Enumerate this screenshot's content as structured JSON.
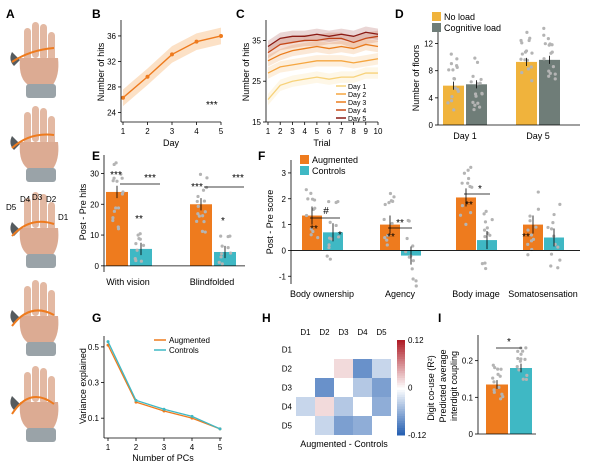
{
  "colors": {
    "augmented": "#ee7b1e",
    "controls": "#3fb8c4",
    "no_load": "#f0b33c",
    "cognitive_load": "#6f7d78",
    "dot": "#b4b4b4",
    "days": [
      "#f7d27a",
      "#f5a640",
      "#ea7d1d",
      "#c94a17",
      "#8a1a14"
    ]
  },
  "panel_labels": [
    "A",
    "B",
    "C",
    "D",
    "E",
    "F",
    "G",
    "H",
    "I"
  ],
  "panel_A": {
    "digit_labels": [
      "D5",
      "D4",
      "D3",
      "D2",
      "D1"
    ],
    "icon": "hand-photos-with-third-thumb"
  },
  "chart_data": [
    {
      "panel": "B",
      "type": "line",
      "x": [
        1,
        2,
        3,
        4,
        5
      ],
      "series": [
        {
          "values": [
            26.3,
            29.6,
            33.1,
            35.1,
            36.0
          ]
        }
      ],
      "xlabel": "Day",
      "ylabel": "Number of hits",
      "xticks": [
        1,
        2,
        3,
        4,
        5
      ],
      "yticks": [
        24,
        28,
        32,
        36
      ],
      "xlim": [
        1,
        5
      ],
      "ylim": [
        22.5,
        38.5
      ],
      "annotation": "***"
    },
    {
      "panel": "C",
      "type": "line",
      "x": [
        1,
        2,
        3,
        4,
        5,
        6,
        7,
        8,
        9,
        10
      ],
      "xticks": [
        1,
        2,
        3,
        4,
        5,
        6,
        7,
        8,
        9,
        10
      ],
      "yticks": [
        15,
        25,
        35
      ],
      "ylim": [
        15,
        40
      ],
      "xlabel": "Trial",
      "ylabel": "Number of hits",
      "series": [
        {
          "name": "Day 1",
          "values": [
            20.5,
            24,
            25,
            25.5,
            26,
            25.5,
            26,
            26,
            27,
            27
          ]
        },
        {
          "name": "Day 2",
          "values": [
            27,
            28.5,
            29,
            29.5,
            30,
            30,
            30,
            29.5,
            30,
            30.5
          ]
        },
        {
          "name": "Day 3",
          "values": [
            30,
            31.5,
            32.5,
            33,
            33.5,
            33,
            33.5,
            33,
            34,
            33.5
          ]
        },
        {
          "name": "Day 4",
          "values": [
            32,
            34,
            34.5,
            35,
            35,
            35.5,
            35.5,
            34.5,
            35.5,
            36
          ]
        },
        {
          "name": "Day 5",
          "values": [
            33.5,
            35.5,
            36,
            36,
            36.5,
            36,
            36.5,
            36,
            37,
            36.5
          ]
        }
      ]
    },
    {
      "panel": "D",
      "type": "bar",
      "categories": [
        "Day 1",
        "Day 5"
      ],
      "series": [
        {
          "name": "No load",
          "values": [
            5.8,
            9.3
          ]
        },
        {
          "name": "Cognitive load",
          "values": [
            6.0,
            9.6
          ]
        }
      ],
      "ylabel": "Number of floors",
      "yticks": [
        0,
        4,
        8,
        12
      ],
      "ylim": [
        0,
        14
      ]
    },
    {
      "panel": "E",
      "type": "bar",
      "categories": [
        "With vision",
        "Blindfolded"
      ],
      "series": [
        {
          "name": "Augmented",
          "values": [
            24,
            20
          ]
        },
        {
          "name": "Controls",
          "values": [
            5.5,
            4.5
          ]
        }
      ],
      "ylabel": "Post - Pre hits",
      "yticks": [
        0,
        10,
        20,
        30
      ],
      "ylim": [
        -2,
        36
      ],
      "annotations": [
        "***",
        "**",
        "***",
        "***",
        "*",
        "***"
      ]
    },
    {
      "panel": "F",
      "type": "bar",
      "categories": [
        "Body ownership",
        "Agency",
        "Body image",
        "Somatosensation"
      ],
      "series": [
        {
          "name": "Augmented",
          "values": [
            1.35,
            1.0,
            2.05,
            1.0
          ]
        },
        {
          "name": "Controls",
          "values": [
            0.7,
            -0.2,
            0.4,
            0.5
          ]
        }
      ],
      "ylabel": "Post - Pre score",
      "yticks": [
        -1,
        0,
        1,
        2,
        3
      ],
      "ylim": [
        -1.3,
        3.5
      ],
      "annotations": [
        "**",
        "*",
        "#",
        "**",
        "**",
        "**",
        "*",
        "**"
      ]
    },
    {
      "panel": "G",
      "type": "line",
      "x": [
        1,
        2,
        3,
        4,
        5
      ],
      "series": [
        {
          "name": "Augmented",
          "values": [
            0.51,
            0.19,
            0.14,
            0.1,
            0.04
          ]
        },
        {
          "name": "Controls",
          "values": [
            0.53,
            0.2,
            0.15,
            0.11,
            0.04
          ]
        }
      ],
      "xlabel": "Number of PCs",
      "ylabel": "Variance explained",
      "xticks": [
        1,
        2,
        3,
        4,
        5
      ],
      "yticks": [
        0.1,
        0.3,
        0.5
      ],
      "ylim": [
        0,
        0.55
      ]
    },
    {
      "panel": "H",
      "type": "heatmap",
      "xlabels": [
        "D1",
        "D2",
        "D3",
        "D4",
        "D5"
      ],
      "ylabels": [
        "D1",
        "D2",
        "D3",
        "D4",
        "D5"
      ],
      "values": [
        [
          0,
          0,
          0,
          0,
          0
        ],
        [
          0,
          0,
          0.02,
          -0.08,
          -0.03
        ],
        [
          0,
          -0.08,
          0,
          -0.04,
          -0.07
        ],
        [
          -0.03,
          0.02,
          -0.04,
          0,
          -0.06
        ],
        [
          0,
          -0.03,
          -0.07,
          -0.06,
          0
        ]
      ],
      "colorbar_label": "Digit co-use (R²)",
      "colorbar_ticks": [
        0.12,
        0,
        -0.12
      ],
      "xlabel": "Augmented - Controls"
    },
    {
      "panel": "I",
      "type": "bar",
      "categories": [
        "Augmented",
        "Controls"
      ],
      "values": [
        0.135,
        0.18
      ],
      "ylabel": "Predicted average interdigit coupling",
      "yticks": [
        0,
        0.1,
        0.2
      ],
      "ylim": [
        0,
        0.27
      ],
      "annotation": "*"
    }
  ]
}
